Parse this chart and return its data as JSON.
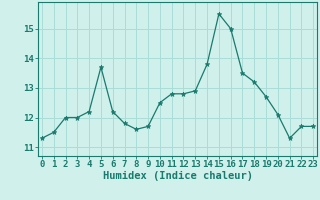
{
  "x": [
    0,
    1,
    2,
    3,
    4,
    5,
    6,
    7,
    8,
    9,
    10,
    11,
    12,
    13,
    14,
    15,
    16,
    17,
    18,
    19,
    20,
    21,
    22,
    23
  ],
  "y": [
    11.3,
    11.5,
    12.0,
    12.0,
    12.2,
    13.7,
    12.2,
    11.8,
    11.6,
    11.7,
    12.5,
    12.8,
    12.8,
    12.9,
    13.8,
    15.5,
    15.0,
    13.5,
    13.2,
    12.7,
    12.1,
    11.3,
    11.7,
    11.7
  ],
  "xlabel": "Humidex (Indice chaleur)",
  "xticks": [
    0,
    1,
    2,
    3,
    4,
    5,
    6,
    7,
    8,
    9,
    10,
    11,
    12,
    13,
    14,
    15,
    16,
    17,
    18,
    19,
    20,
    21,
    22,
    23
  ],
  "yticks": [
    11,
    12,
    13,
    14,
    15
  ],
  "ylim": [
    10.7,
    15.9
  ],
  "xlim": [
    -0.3,
    23.3
  ],
  "line_color": "#1a7a6e",
  "marker": "*",
  "bg_color": "#cff0eb",
  "grid_color": "#aaddd8",
  "label_color": "#1a7a6e",
  "tick_color": "#1a7a6e",
  "font_size_label": 7.5,
  "font_size_tick": 6.5
}
